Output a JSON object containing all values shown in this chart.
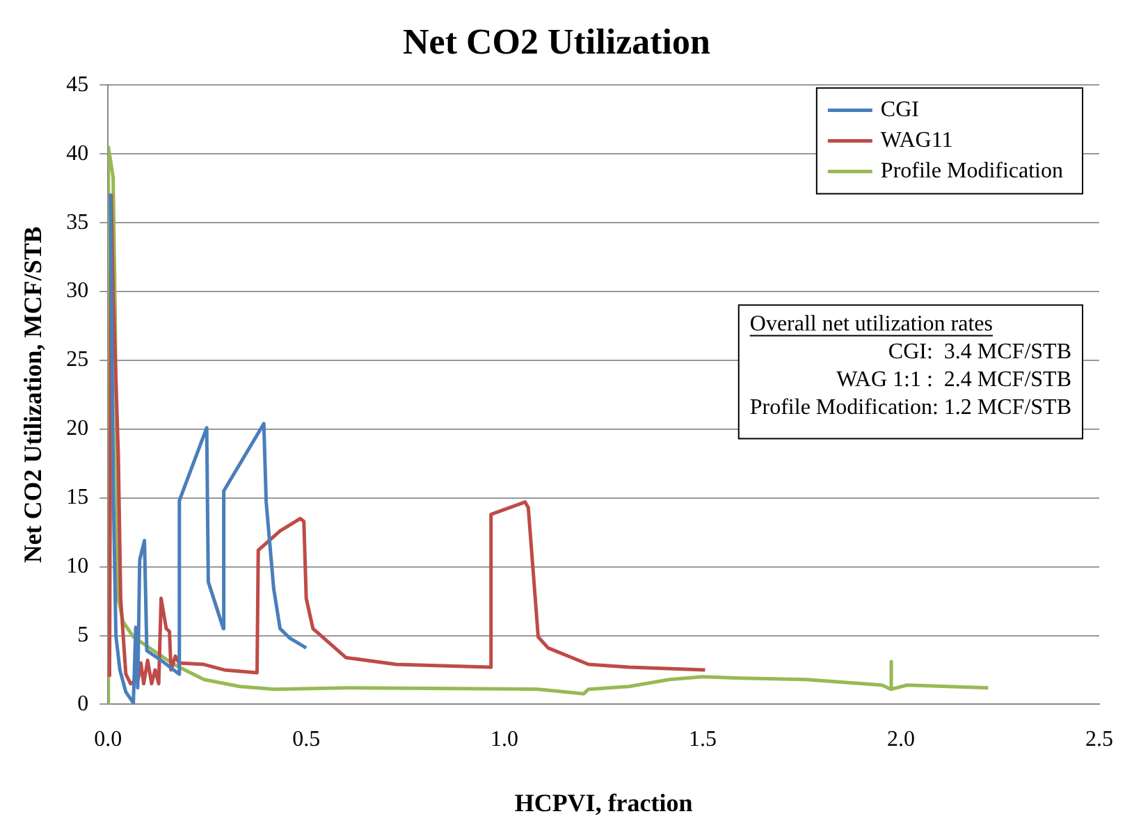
{
  "chart_data": {
    "type": "line",
    "title": "Net CO2 Utilization",
    "xlabel": "HCPVI, fraction",
    "ylabel": "Net CO2 Utilization, MCF/STB",
    "xlim": [
      0,
      2.5
    ],
    "xticks": [
      {
        "value": 0,
        "label": "0.0"
      },
      {
        "value": 0.5,
        "label": "0.5"
      },
      {
        "value": 1,
        "label": "1.0"
      },
      {
        "value": 1.5,
        "label": "1.5"
      },
      {
        "value": 2,
        "label": "2.0"
      },
      {
        "value": 2.5,
        "label": "2.5"
      }
    ],
    "ylim": [
      0,
      45
    ],
    "yticks": [
      0,
      5,
      10,
      15,
      20,
      25,
      30,
      35,
      40,
      45
    ],
    "grid": "y",
    "legend": "top right",
    "marker": "none",
    "line_style": "solid",
    "series": [
      {
        "name": "CGI",
        "color": "#4a7ebb",
        "x": [
          0.006,
          0.01,
          0.014,
          0.02,
          0.03,
          0.045,
          0.064,
          0.07,
          0.075,
          0.08,
          0.092,
          0.098,
          0.134,
          0.179,
          0.18,
          0.249,
          0.253,
          0.291,
          0.292,
          0.393,
          0.399,
          0.418,
          0.434,
          0.459,
          0.5
        ],
        "values": [
          37.1,
          26,
          14.7,
          5,
          2.5,
          0.9,
          0.1,
          5.6,
          1.2,
          10.5,
          11.9,
          3.9,
          3.2,
          2.2,
          14.8,
          20.1,
          8.9,
          5.5,
          15.5,
          20.4,
          14.7,
          8.4,
          5.5,
          4.8,
          4.1
        ]
      },
      {
        "name": "WAG11",
        "color": "#be4b48",
        "x": [
          0.004,
          0.008,
          0.013,
          0.026,
          0.032,
          0.045,
          0.057,
          0.076,
          0.083,
          0.09,
          0.1,
          0.11,
          0.119,
          0.128,
          0.134,
          0.147,
          0.155,
          0.159,
          0.17,
          0.179,
          0.242,
          0.293,
          0.376,
          0.379,
          0.395,
          0.434,
          0.485,
          0.494,
          0.5,
          0.517,
          0.6,
          0.727,
          0.963,
          0.966,
          1.052,
          1.06,
          1.085,
          1.11,
          1.212,
          1.314,
          1.506
        ],
        "values": [
          2,
          37,
          30,
          18.2,
          7.7,
          2.2,
          1.5,
          1.8,
          3,
          1.5,
          3.2,
          1.5,
          2.5,
          1.5,
          7.7,
          5.5,
          5.3,
          2.5,
          3.5,
          3,
          2.9,
          2.5,
          2.3,
          11.2,
          11.6,
          12.6,
          13.5,
          13.3,
          7.7,
          5.5,
          3.4,
          2.9,
          2.7,
          13.8,
          14.7,
          14.3,
          4.9,
          4.1,
          2.9,
          2.7,
          2.5
        ]
      },
      {
        "name": "Profile Modification",
        "color": "#98b954",
        "x": [
          0,
          0.001,
          0.013,
          0.018,
          0.023,
          0.026,
          0.038,
          0.064,
          0.115,
          0.166,
          0.242,
          0.332,
          0.42,
          0.6,
          1.085,
          1.2,
          1.212,
          1.314,
          1.416,
          1.5,
          1.595,
          1.76,
          1.952,
          1.974,
          1.975,
          1.976,
          2.016,
          2.22
        ],
        "values": [
          0,
          40.5,
          38.3,
          28.6,
          14.7,
          7.7,
          6,
          4.9,
          3.9,
          2.9,
          1.8,
          1.3,
          1.1,
          1.2,
          1.1,
          0.77,
          1.1,
          1.3,
          1.8,
          2,
          1.9,
          1.8,
          1.4,
          1.1,
          3.1,
          1.1,
          1.4,
          1.2
        ]
      }
    ],
    "annotations": [
      "Overall net utilization rates",
      "CGI:  3.4 MCF/STB",
      "WAG 1:1 :  2.4 MCF/STB",
      "Profile Modification: 1.2 MCF/STB"
    ]
  }
}
